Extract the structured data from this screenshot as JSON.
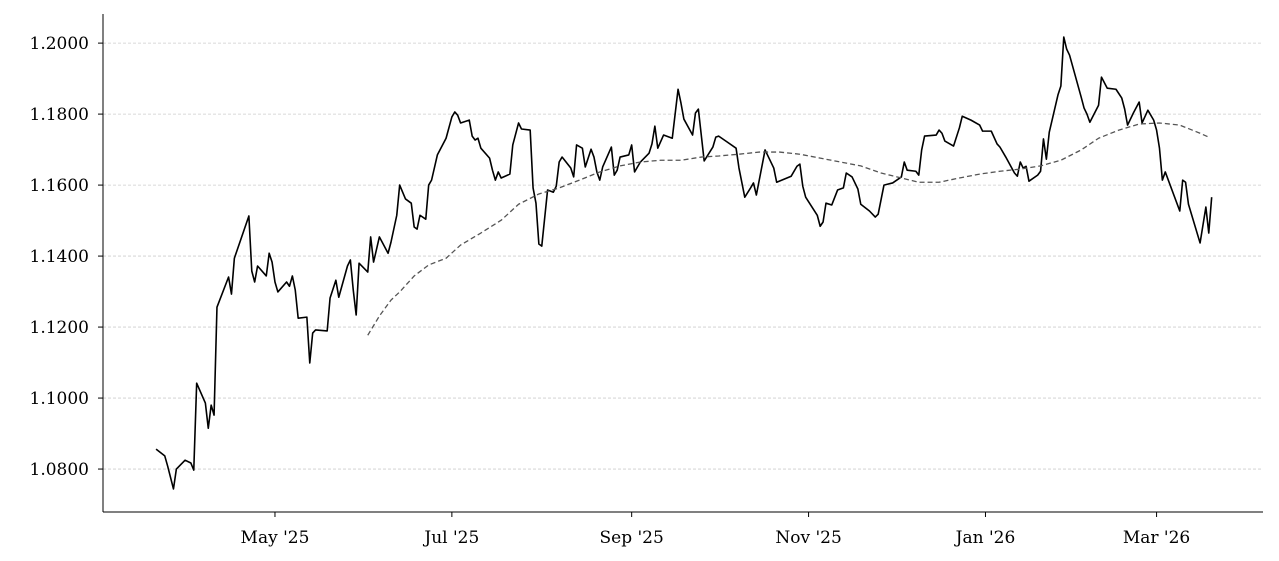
{
  "chart_data": {
    "type": "line",
    "xlim": [
      -59.3,
      340.7
    ],
    "xticks": [
      {
        "value": 0,
        "label": "May '25"
      },
      {
        "value": 61,
        "label": "Jul '25"
      },
      {
        "value": 123,
        "label": "Sep '25"
      },
      {
        "value": 184,
        "label": "Nov '25"
      },
      {
        "value": 245,
        "label": "Jan '26"
      },
      {
        "value": 304,
        "label": "Mar '26"
      }
    ],
    "ylim": [
      1.0679,
      1.2082
    ],
    "yticks": [
      {
        "value": 1.08,
        "label": "1.0800"
      },
      {
        "value": 1.1,
        "label": "1.1000"
      },
      {
        "value": 1.12,
        "label": "1.1200"
      },
      {
        "value": 1.14,
        "label": "1.1400"
      },
      {
        "value": 1.16,
        "label": "1.1600"
      },
      {
        "value": 1.18,
        "label": "1.1800"
      },
      {
        "value": 1.2,
        "label": "1.2000"
      }
    ],
    "grid": true,
    "series": [
      {
        "color": "#000000",
        "linestyle": "solid",
        "x": [
          -41,
          -38,
          -37,
          -35,
          -34,
          -31,
          -29,
          -28,
          -27,
          -24,
          -23,
          -22,
          -21,
          -20,
          -16,
          -15,
          -14,
          -9,
          -8,
          -7,
          -6,
          -3,
          -2,
          -1,
          0,
          1,
          4,
          5,
          6,
          7,
          8,
          11,
          12,
          13,
          14,
          18,
          19,
          21,
          22,
          25,
          26,
          27,
          28,
          29,
          32,
          33,
          34,
          36,
          39,
          40,
          42,
          43,
          45,
          47,
          48,
          49,
          50,
          52,
          53,
          54,
          56,
          59,
          61,
          62,
          63,
          64,
          67,
          68,
          69,
          70,
          71,
          74,
          75,
          76,
          77,
          78,
          81,
          82,
          84,
          85,
          88,
          89,
          90,
          91,
          92,
          94,
          96,
          97,
          98,
          99,
          102,
          103,
          104,
          106,
          107,
          109,
          110,
          111,
          112,
          113,
          116,
          117,
          118,
          119,
          122,
          123,
          124,
          126,
          129,
          130,
          131,
          132,
          134,
          137,
          139,
          140,
          141,
          144,
          145,
          146,
          148,
          151,
          152,
          153,
          156,
          159,
          160,
          162,
          164,
          165,
          166,
          169,
          172,
          173,
          178,
          180,
          181,
          182,
          183,
          187,
          188,
          189,
          190,
          192,
          194,
          196,
          197,
          199,
          201,
          202,
          205,
          207,
          208,
          210,
          213,
          216,
          217,
          218,
          221,
          222,
          223,
          224,
          228,
          229,
          230,
          231,
          234,
          236,
          237,
          240,
          243,
          244,
          247,
          249,
          250,
          252,
          255,
          256,
          257,
          258,
          259,
          260,
          263,
          264,
          265,
          266,
          267,
          270,
          271,
          272,
          273,
          274,
          278,
          279,
          280,
          281,
          284,
          285,
          287,
          290,
          292,
          293,
          294,
          296,
          298,
          299,
          301,
          303,
          304,
          305,
          306,
          307,
          312,
          313,
          314,
          315,
          319,
          321,
          322,
          323
        ],
        "values": [
          1.0856,
          1.0837,
          1.0808,
          1.0744,
          1.08,
          1.0825,
          1.0817,
          1.0797,
          1.1042,
          1.0986,
          1.0915,
          1.098,
          1.0952,
          1.1256,
          1.1341,
          1.1293,
          1.1394,
          1.1513,
          1.1358,
          1.1327,
          1.1372,
          1.1344,
          1.1408,
          1.1383,
          1.1327,
          1.1299,
          1.1327,
          1.1315,
          1.1344,
          1.1304,
          1.1225,
          1.1228,
          1.1099,
          1.1183,
          1.1192,
          1.1189,
          1.1282,
          1.1332,
          1.1284,
          1.1372,
          1.1389,
          1.1304,
          1.1234,
          1.138,
          1.1355,
          1.1454,
          1.1383,
          1.1454,
          1.1408,
          1.1439,
          1.1515,
          1.16,
          1.1561,
          1.1549,
          1.1482,
          1.1476,
          1.1515,
          1.1504,
          1.16,
          1.1614,
          1.1685,
          1.1732,
          1.1792,
          1.1806,
          1.1797,
          1.1775,
          1.1783,
          1.1738,
          1.1727,
          1.1732,
          1.1704,
          1.1676,
          1.1642,
          1.1614,
          1.1637,
          1.162,
          1.1631,
          1.1713,
          1.1775,
          1.1758,
          1.1755,
          1.1592,
          1.1549,
          1.1434,
          1.1428,
          1.1586,
          1.158,
          1.1597,
          1.1665,
          1.1679,
          1.1648,
          1.1623,
          1.1713,
          1.1704,
          1.1651,
          1.1701,
          1.1679,
          1.1637,
          1.1614,
          1.1651,
          1.1707,
          1.1628,
          1.1642,
          1.1679,
          1.1685,
          1.1713,
          1.1637,
          1.1665,
          1.169,
          1.1716,
          1.1766,
          1.1704,
          1.1741,
          1.1732,
          1.187,
          1.1831,
          1.1786,
          1.1741,
          1.1803,
          1.1814,
          1.1668,
          1.1707,
          1.1735,
          1.1738,
          1.1721,
          1.1704,
          1.1648,
          1.1566,
          1.1592,
          1.1606,
          1.1572,
          1.1699,
          1.1648,
          1.1608,
          1.1625,
          1.1653,
          1.1659,
          1.1597,
          1.1566,
          1.1515,
          1.1484,
          1.1496,
          1.1549,
          1.1544,
          1.1586,
          1.1592,
          1.1634,
          1.1623,
          1.1589,
          1.1546,
          1.1527,
          1.151,
          1.1518,
          1.16,
          1.1606,
          1.1623,
          1.1665,
          1.1642,
          1.1639,
          1.1628,
          1.1699,
          1.1738,
          1.1741,
          1.1755,
          1.1746,
          1.1724,
          1.171,
          1.1761,
          1.1794,
          1.1783,
          1.1769,
          1.1752,
          1.1752,
          1.1716,
          1.1707,
          1.1679,
          1.1634,
          1.1625,
          1.1665,
          1.1648,
          1.1653,
          1.1611,
          1.1628,
          1.1639,
          1.173,
          1.1673,
          1.1749,
          1.1854,
          1.1879,
          1.2017,
          1.1983,
          1.1966,
          1.1848,
          1.1817,
          1.18,
          1.1777,
          1.1825,
          1.1904,
          1.1873,
          1.187,
          1.1845,
          1.1814,
          1.1769,
          1.1803,
          1.1834,
          1.1775,
          1.1811,
          1.1783,
          1.1755,
          1.1704,
          1.1614,
          1.1637,
          1.1527,
          1.1614,
          1.1608,
          1.1546,
          1.1437,
          1.1538,
          1.1465,
          1.1566
        ]
      },
      {
        "color": "#555555",
        "linestyle": "dashed",
        "x": [
          32,
          36,
          40,
          43,
          48,
          53,
          59,
          64,
          71,
          78,
          84,
          91,
          98,
          105,
          112,
          119,
          126,
          133,
          140,
          147,
          153,
          160,
          167,
          174,
          181,
          188,
          195,
          202,
          209,
          216,
          222,
          229,
          236,
          243,
          250,
          257,
          264,
          271,
          278,
          284,
          291,
          298,
          305,
          312,
          319,
          322
        ],
        "values": [
          1.1177,
          1.1231,
          1.1276,
          1.1299,
          1.1344,
          1.1375,
          1.1394,
          1.1431,
          1.1465,
          1.1501,
          1.1546,
          1.1575,
          1.1592,
          1.1614,
          1.1637,
          1.1654,
          1.1665,
          1.167,
          1.167,
          1.1679,
          1.1682,
          1.1687,
          1.1693,
          1.1693,
          1.1687,
          1.1676,
          1.1665,
          1.1654,
          1.1634,
          1.162,
          1.1608,
          1.1608,
          1.162,
          1.1631,
          1.1639,
          1.1645,
          1.1654,
          1.167,
          1.1699,
          1.1732,
          1.1755,
          1.1772,
          1.1775,
          1.1769,
          1.1746,
          1.1735
        ]
      }
    ]
  }
}
